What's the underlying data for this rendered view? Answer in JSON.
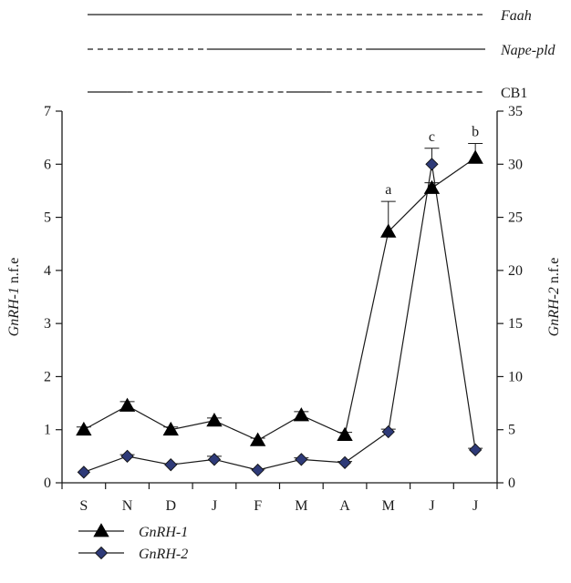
{
  "chart_data": {
    "type": "line",
    "categories": [
      "S",
      "N",
      "D",
      "J",
      "F",
      "M",
      "A",
      "M",
      "J",
      "J"
    ],
    "left_axis": {
      "label_italic": "GnRH-1",
      "label_rest": " n.f.e",
      "ylim": [
        0,
        7
      ],
      "ticks": [
        "0",
        "1",
        "2",
        "3",
        "4",
        "5",
        "6",
        "7"
      ]
    },
    "right_axis": {
      "label_italic": "GnRH-2",
      "label_rest": " n.f.e",
      "ylim": [
        0,
        35
      ],
      "ticks": [
        "0",
        "5",
        "10",
        "15",
        "20",
        "25",
        "30",
        "35"
      ]
    },
    "series": [
      {
        "name": "GnRH-1",
        "axis": "left",
        "marker": "triangle",
        "color": "#000000",
        "values": [
          1.0,
          1.45,
          1.0,
          1.17,
          0.8,
          1.27,
          0.9,
          4.73,
          5.55,
          6.12
        ],
        "error": [
          0.05,
          0.08,
          0.05,
          0.05,
          0.04,
          0.07,
          0.05,
          0.57,
          0.1,
          0.27
        ]
      },
      {
        "name": "GnRH-2",
        "axis": "right",
        "marker": "diamond",
        "color": "#2e3a78",
        "values": [
          1.0,
          2.5,
          1.7,
          2.2,
          1.2,
          2.2,
          1.9,
          4.8,
          30.0,
          3.1
        ],
        "error": [
          0,
          0.15,
          0.1,
          0.3,
          0.1,
          0.15,
          0.1,
          0.25,
          1.5,
          0.15
        ]
      }
    ],
    "significance_labels": [
      {
        "index": 7,
        "text": "a",
        "series": "GnRH-1"
      },
      {
        "index": 8,
        "text": "c",
        "series": "GnRH-2"
      },
      {
        "index": 9,
        "text": "b",
        "series": "GnRH-1"
      }
    ],
    "expression_bars": [
      {
        "name": "Faah",
        "italic": true,
        "segments": [
          {
            "from": 0,
            "to": 5,
            "style": "solid"
          },
          {
            "from": 5,
            "to": 10,
            "style": "dashed"
          }
        ]
      },
      {
        "name": "Nape-pld",
        "italic": true,
        "segments": [
          {
            "from": 0,
            "to": 3,
            "style": "dashed"
          },
          {
            "from": 3,
            "to": 5,
            "style": "solid"
          },
          {
            "from": 5,
            "to": 7,
            "style": "dashed"
          },
          {
            "from": 7,
            "to": 10,
            "style": "solid"
          }
        ]
      },
      {
        "name": "CB1",
        "italic": false,
        "segments": [
          {
            "from": 0,
            "to": 1,
            "style": "solid"
          },
          {
            "from": 1,
            "to": 5,
            "style": "dashed"
          },
          {
            "from": 5,
            "to": 6,
            "style": "solid"
          },
          {
            "from": 6,
            "to": 10,
            "style": "dashed"
          }
        ]
      }
    ],
    "legend": {
      "placement": "bottom-left"
    },
    "grid": false
  }
}
